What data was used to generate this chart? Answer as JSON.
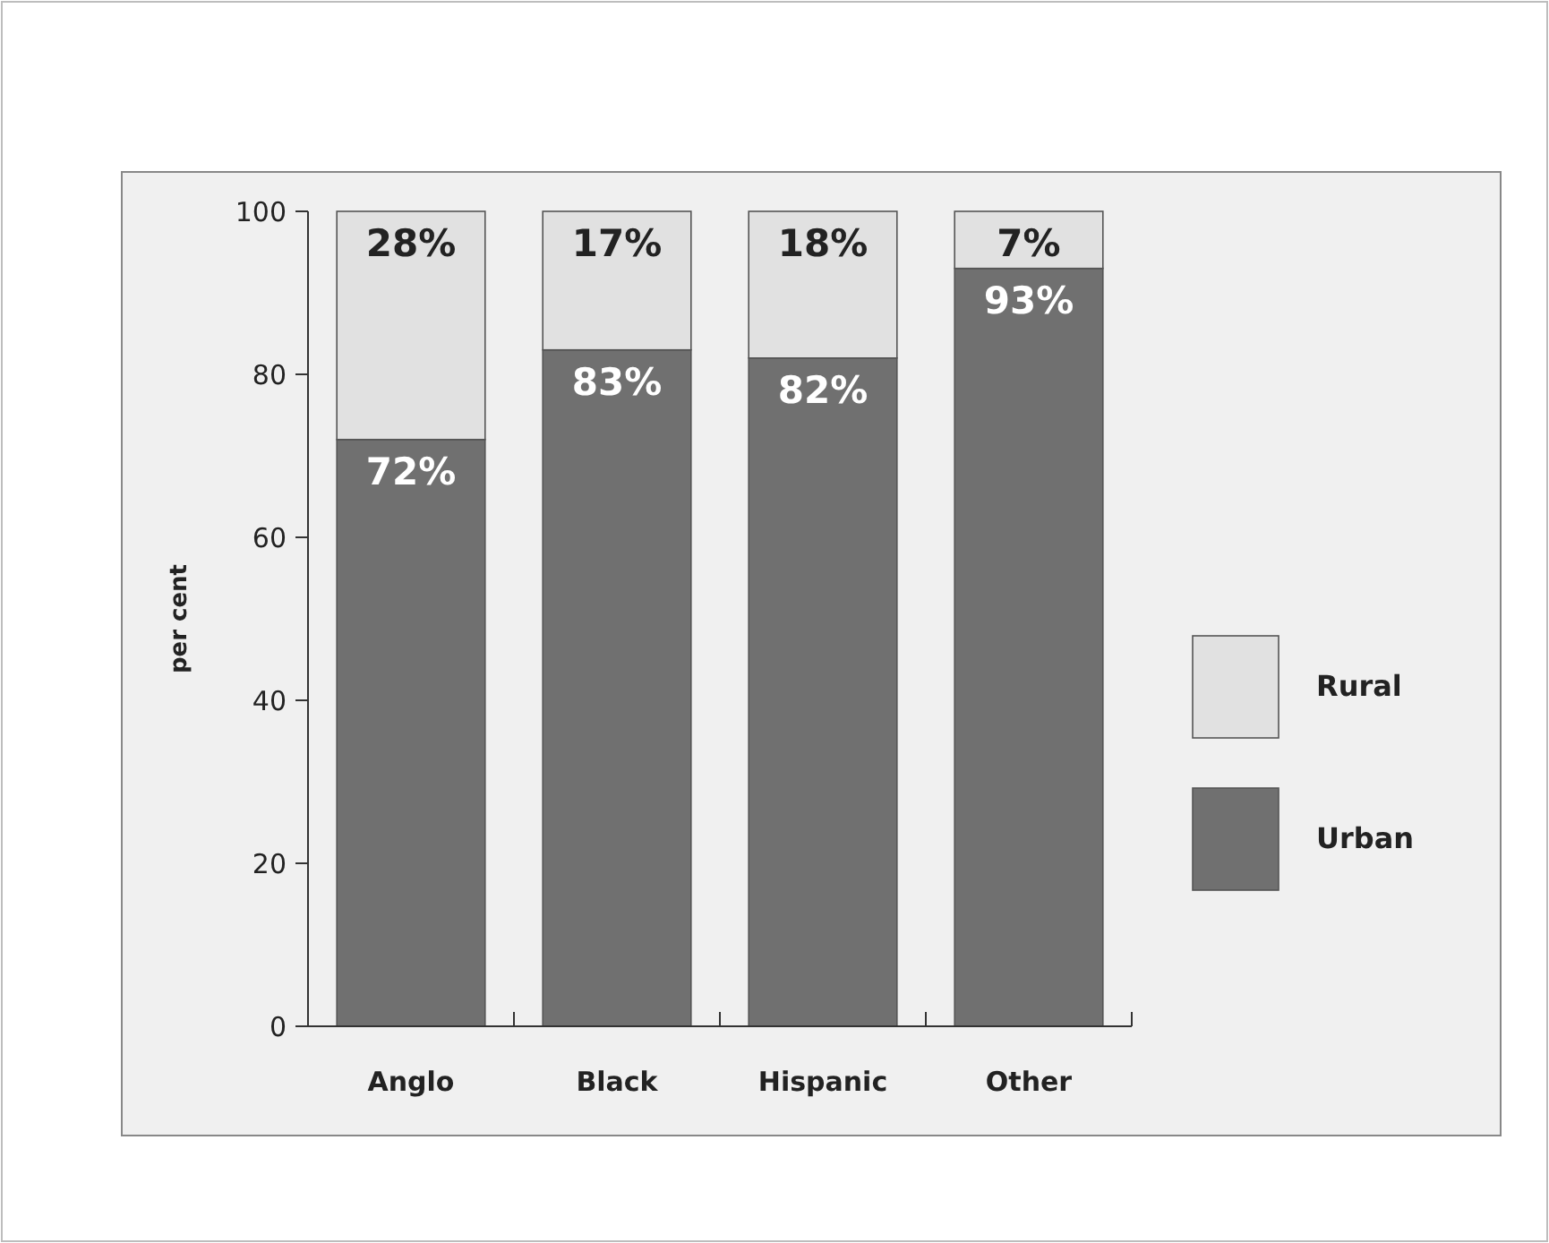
{
  "chart_data": {
    "type": "bar",
    "stacked": true,
    "ylabel": "per cent",
    "categories": [
      "Anglo",
      "Black",
      "Hispanic",
      "Other"
    ],
    "series": [
      {
        "name": "Urban",
        "color": "#707070",
        "values": [
          72,
          83,
          82,
          93
        ],
        "value_labels": [
          "72%",
          "83%",
          "82%",
          "93%"
        ]
      },
      {
        "name": "Rural",
        "color": "#e1e1e1",
        "values": [
          28,
          17,
          18,
          7
        ],
        "value_labels": [
          "28%",
          "17%",
          "18%",
          "7%"
        ]
      }
    ],
    "ylim": [
      0,
      100
    ],
    "yticks": [
      0,
      20,
      40,
      60,
      80,
      100
    ],
    "grid": false,
    "legend": "right"
  }
}
